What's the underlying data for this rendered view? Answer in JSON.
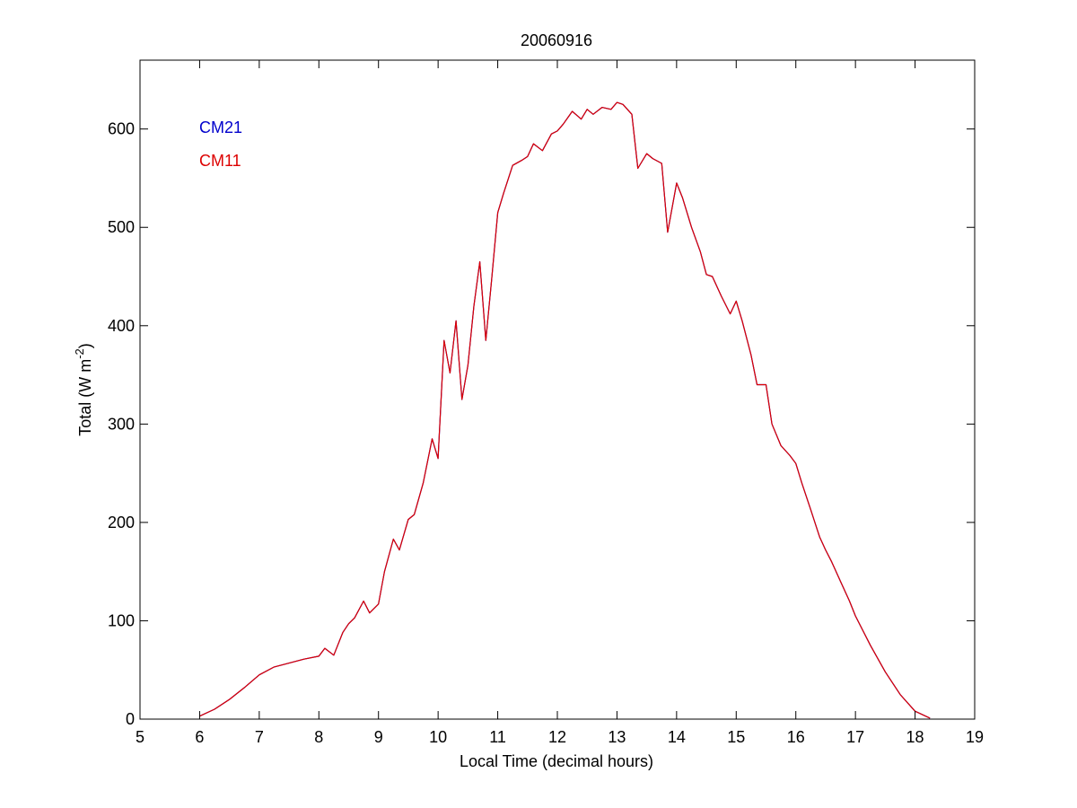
{
  "chart_data": {
    "type": "line",
    "title": "20060916",
    "xlabel": "Local Time (decimal hours)",
    "ylabel": {
      "main": "Total (W m",
      "sup": "-2",
      "close": ")"
    },
    "xlim": [
      5,
      19
    ],
    "ylim": [
      0,
      670
    ],
    "xticks": [
      5,
      6,
      7,
      8,
      9,
      10,
      11,
      12,
      13,
      14,
      15,
      16,
      17,
      18,
      19
    ],
    "yticks": [
      0,
      100,
      200,
      300,
      400,
      500,
      600
    ],
    "grid": false,
    "legend_placement": "top-left",
    "series": [
      {
        "name": "CM21",
        "color": "#0000cc",
        "x": [
          6.0,
          6.25,
          6.5,
          6.75,
          7.0,
          7.25,
          7.5,
          7.75,
          8.0,
          8.1,
          8.25,
          8.4,
          8.5,
          8.6,
          8.75,
          8.85,
          9.0,
          9.1,
          9.25,
          9.35,
          9.5,
          9.6,
          9.75,
          9.9,
          10.0,
          10.1,
          10.2,
          10.3,
          10.4,
          10.5,
          10.6,
          10.7,
          10.8,
          10.9,
          11.0,
          11.1,
          11.25,
          11.4,
          11.5,
          11.6,
          11.75,
          11.9,
          12.0,
          12.1,
          12.25,
          12.4,
          12.5,
          12.6,
          12.75,
          12.9,
          13.0,
          13.1,
          13.25,
          13.35,
          13.5,
          13.6,
          13.75,
          13.85,
          14.0,
          14.1,
          14.25,
          14.4,
          14.5,
          14.6,
          14.75,
          14.9,
          15.0,
          15.1,
          15.25,
          15.35,
          15.5,
          15.6,
          15.75,
          15.9,
          16.0,
          16.1,
          16.25,
          16.4,
          16.5,
          16.6,
          16.75,
          16.9,
          17.0,
          17.25,
          17.5,
          17.75,
          18.0,
          18.25
        ],
        "y": [
          3,
          10,
          20,
          32,
          45,
          53,
          57,
          61,
          64,
          72,
          65,
          88,
          97,
          103,
          120,
          108,
          117,
          150,
          183,
          172,
          203,
          208,
          240,
          285,
          265,
          385,
          352,
          405,
          325,
          360,
          420,
          465,
          385,
          448,
          515,
          535,
          563,
          568,
          572,
          585,
          578,
          595,
          598,
          605,
          618,
          610,
          620,
          615,
          622,
          620,
          627,
          625,
          615,
          560,
          575,
          570,
          565,
          495,
          545,
          530,
          500,
          475,
          452,
          450,
          430,
          412,
          425,
          405,
          370,
          340,
          340,
          300,
          278,
          268,
          260,
          240,
          213,
          185,
          172,
          160,
          140,
          120,
          105,
          75,
          48,
          25,
          8,
          1
        ]
      },
      {
        "name": "CM11",
        "color": "#dd0000",
        "x": [
          6.0,
          6.25,
          6.5,
          6.75,
          7.0,
          7.25,
          7.5,
          7.75,
          8.0,
          8.1,
          8.25,
          8.4,
          8.5,
          8.6,
          8.75,
          8.85,
          9.0,
          9.1,
          9.25,
          9.35,
          9.5,
          9.6,
          9.75,
          9.9,
          10.0,
          10.1,
          10.2,
          10.3,
          10.4,
          10.5,
          10.6,
          10.7,
          10.8,
          10.9,
          11.0,
          11.1,
          11.25,
          11.4,
          11.5,
          11.6,
          11.75,
          11.9,
          12.0,
          12.1,
          12.25,
          12.4,
          12.5,
          12.6,
          12.75,
          12.9,
          13.0,
          13.1,
          13.25,
          13.35,
          13.5,
          13.6,
          13.75,
          13.85,
          14.0,
          14.1,
          14.25,
          14.4,
          14.5,
          14.6,
          14.75,
          14.9,
          15.0,
          15.1,
          15.25,
          15.35,
          15.5,
          15.6,
          15.75,
          15.9,
          16.0,
          16.1,
          16.25,
          16.4,
          16.5,
          16.6,
          16.75,
          16.9,
          17.0,
          17.25,
          17.5,
          17.75,
          18.0,
          18.25
        ],
        "y": [
          3,
          10,
          20,
          32,
          45,
          53,
          57,
          61,
          64,
          72,
          65,
          88,
          97,
          103,
          120,
          108,
          117,
          150,
          183,
          172,
          203,
          208,
          240,
          285,
          265,
          385,
          352,
          405,
          325,
          360,
          420,
          465,
          385,
          448,
          515,
          535,
          563,
          568,
          572,
          585,
          578,
          595,
          598,
          605,
          618,
          610,
          620,
          615,
          622,
          620,
          627,
          625,
          615,
          560,
          575,
          570,
          565,
          495,
          545,
          530,
          500,
          475,
          452,
          450,
          430,
          412,
          425,
          405,
          370,
          340,
          340,
          300,
          278,
          268,
          260,
          240,
          213,
          185,
          172,
          160,
          140,
          120,
          105,
          75,
          48,
          25,
          8,
          1
        ]
      }
    ]
  }
}
